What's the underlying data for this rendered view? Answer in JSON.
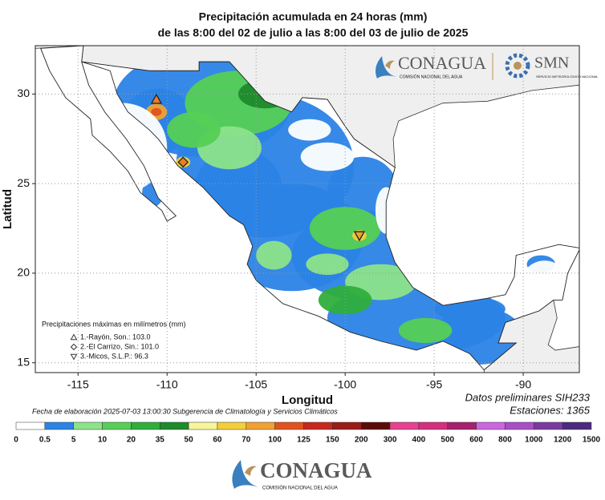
{
  "header": {
    "title": "Precipitación acumulada en 24 horas (mm)",
    "subtitle": "de las 8:00 del 02 de julio a las 8:00 del 03 de julio de 2025"
  },
  "logos": {
    "conagua": "CONAGUA",
    "conagua_sub": "COMISIÓN NACIONAL DEL AGUA",
    "smn": "SMN",
    "smn_sub": "SERVICIO METEOROLÓGICO NACIONAL"
  },
  "map": {
    "xlim": [
      -117.4,
      -86.85
    ],
    "ylim": [
      14.45,
      32.7
    ],
    "xticks": [
      -115,
      -110,
      -105,
      -100,
      -95,
      -90
    ],
    "yticks": [
      15,
      20,
      25,
      30
    ],
    "xlabel": "Longitud",
    "ylabel": "Latitud",
    "grid": true
  },
  "maxima": {
    "title": "Precipitaciones máximas en milímetros (mm)",
    "stations": [
      {
        "label": "1.-Rayón, Son.: 103.0",
        "marker": "triangle-up",
        "lon": -110.6,
        "lat": 29.7,
        "color": "#e8802a"
      },
      {
        "label": "2.-El Carrizo, Sin.: 101.0",
        "marker": "diamond",
        "lon": -109.1,
        "lat": 26.2,
        "color": "#e8802a"
      },
      {
        "label": "3.-Micos, S.L.P.: 96.3",
        "marker": "triangle-down",
        "lon": -99.2,
        "lat": 22.1,
        "color": "#f0a132"
      }
    ]
  },
  "footer": {
    "created": "Fecha de elaboración 2025-07-03 13:00:30 Subgerencia de Climatología y Servicios Climáticos",
    "source": "Datos preliminares SIH233",
    "stations": "Estaciones:  1365"
  },
  "colorbar": {
    "bounds": [
      0,
      0.5,
      5,
      10,
      20,
      35,
      50,
      60,
      70,
      100,
      125,
      150,
      200,
      300,
      400,
      500,
      600,
      800,
      1000,
      1200,
      1500
    ],
    "colors": [
      "#ffffff",
      "#2b83e6",
      "#8de38a",
      "#55cf55",
      "#2fae3c",
      "#1d8a2c",
      "#f7f59a",
      "#f2cf3b",
      "#f0a132",
      "#e0531f",
      "#c7281e",
      "#9b1b17",
      "#5c0c08",
      "#e8418f",
      "#d42e7f",
      "#a6206b",
      "#cc66e0",
      "#a84fc7",
      "#7a3aa0",
      "#4c2a80"
    ]
  },
  "bottom_logo": {
    "name": "CONAGUA",
    "sub": "COMISIÓN NACIONAL DEL AGUA"
  }
}
